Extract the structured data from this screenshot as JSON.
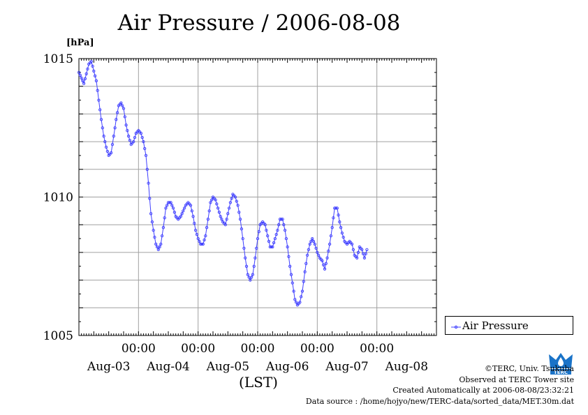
{
  "chart_data": {
    "type": "line",
    "title": "Air Pressure / 2006-08-08",
    "ylabel_unit": "[hPa]",
    "xlabel": "(LST)",
    "ylim": [
      1005,
      1015
    ],
    "y_ticks": [
      1005,
      1010,
      1015
    ],
    "x_ticks_top": [
      "00:00",
      "00:00",
      "00:00",
      "00:00",
      "00:00"
    ],
    "x_ticks_bottom": [
      "Aug-03",
      "Aug-04",
      "Aug-05",
      "Aug-06",
      "Aug-07",
      "Aug-08"
    ],
    "x_unit": "hours since first sample (00:00 LST Aug-02)",
    "xlim": [
      0,
      144
    ],
    "grid": true,
    "legend_position": "right-bottom",
    "line_color": "#3f3fff",
    "series": [
      {
        "name": "Air Pressure",
        "points": [
          [
            0,
            1014.5
          ],
          [
            2,
            1014.1
          ],
          [
            4,
            1014.8
          ],
          [
            5,
            1014.9
          ],
          [
            7,
            1014.2
          ],
          [
            8,
            1013.5
          ],
          [
            9,
            1012.8
          ],
          [
            10,
            1012.2
          ],
          [
            11,
            1011.8
          ],
          [
            12,
            1011.5
          ],
          [
            13,
            1011.6
          ],
          [
            14,
            1012.2
          ],
          [
            15,
            1012.8
          ],
          [
            16,
            1013.3
          ],
          [
            17,
            1013.4
          ],
          [
            18,
            1013.2
          ],
          [
            19,
            1012.6
          ],
          [
            20,
            1012.2
          ],
          [
            21,
            1011.9
          ],
          [
            22,
            1012.0
          ],
          [
            23,
            1012.3
          ],
          [
            24,
            1012.4
          ],
          [
            25,
            1012.3
          ],
          [
            26,
            1012.0
          ],
          [
            27,
            1011.5
          ],
          [
            28,
            1010.5
          ],
          [
            29,
            1009.4
          ],
          [
            30,
            1008.8
          ],
          [
            31,
            1008.3
          ],
          [
            32,
            1008.1
          ],
          [
            33,
            1008.3
          ],
          [
            34,
            1008.9
          ],
          [
            35,
            1009.6
          ],
          [
            36,
            1009.8
          ],
          [
            37,
            1009.8
          ],
          [
            38,
            1009.6
          ],
          [
            39,
            1009.3
          ],
          [
            40,
            1009.2
          ],
          [
            41,
            1009.3
          ],
          [
            42,
            1009.5
          ],
          [
            43,
            1009.7
          ],
          [
            44,
            1009.8
          ],
          [
            45,
            1009.7
          ],
          [
            46,
            1009.3
          ],
          [
            47,
            1008.8
          ],
          [
            48,
            1008.5
          ],
          [
            49,
            1008.3
          ],
          [
            50,
            1008.3
          ],
          [
            51,
            1008.6
          ],
          [
            52,
            1009.2
          ],
          [
            53,
            1009.8
          ],
          [
            54,
            1010.0
          ],
          [
            55,
            1009.9
          ],
          [
            56,
            1009.6
          ],
          [
            57,
            1009.3
          ],
          [
            58,
            1009.1
          ],
          [
            59,
            1009.0
          ],
          [
            60,
            1009.4
          ],
          [
            61,
            1009.8
          ],
          [
            62,
            1010.1
          ],
          [
            63,
            1010.0
          ],
          [
            64,
            1009.7
          ],
          [
            65,
            1009.2
          ],
          [
            66,
            1008.5
          ],
          [
            67,
            1007.8
          ],
          [
            68,
            1007.2
          ],
          [
            69,
            1007.0
          ],
          [
            70,
            1007.2
          ],
          [
            71,
            1007.8
          ],
          [
            72,
            1008.5
          ],
          [
            73,
            1009.0
          ],
          [
            74,
            1009.1
          ],
          [
            75,
            1009.0
          ],
          [
            76,
            1008.6
          ],
          [
            77,
            1008.2
          ],
          [
            78,
            1008.2
          ],
          [
            79,
            1008.5
          ],
          [
            80,
            1008.8
          ],
          [
            81,
            1009.2
          ],
          [
            82,
            1009.2
          ],
          [
            83,
            1008.8
          ],
          [
            84,
            1008.2
          ],
          [
            85,
            1007.5
          ],
          [
            86,
            1006.9
          ],
          [
            87,
            1006.3
          ],
          [
            88,
            1006.1
          ],
          [
            89,
            1006.2
          ],
          [
            90,
            1006.6
          ],
          [
            91,
            1007.3
          ],
          [
            92,
            1007.9
          ],
          [
            93,
            1008.3
          ],
          [
            94,
            1008.5
          ],
          [
            95,
            1008.3
          ],
          [
            96,
            1008.0
          ],
          [
            97,
            1007.8
          ],
          [
            98,
            1007.7
          ],
          [
            99,
            1007.4
          ],
          [
            100,
            1007.8
          ],
          [
            101,
            1008.3
          ],
          [
            102,
            1008.9
          ],
          [
            103,
            1009.6
          ],
          [
            104,
            1009.6
          ],
          [
            105,
            1009.1
          ],
          [
            106,
            1008.7
          ],
          [
            107,
            1008.4
          ],
          [
            108,
            1008.3
          ],
          [
            109,
            1008.4
          ],
          [
            110,
            1008.3
          ],
          [
            111,
            1007.9
          ],
          [
            112,
            1007.8
          ],
          [
            113,
            1008.2
          ],
          [
            114,
            1008.1
          ],
          [
            115,
            1007.8
          ],
          [
            116,
            1008.1
          ]
        ]
      }
    ]
  },
  "legend": {
    "label": "Air Pressure"
  },
  "credits": {
    "line1": "©TERC, Univ. Tsukuba",
    "line2": "Observed at TERC Tower site",
    "line3": "Created Automatically at 2006-08-08/23:32:21",
    "line4": "Data source : /home/hojyo/new/TERC-data/sorted_data/MET.30m.dat"
  },
  "logo": {
    "text": "TERC",
    "color": "#1a73c8"
  }
}
